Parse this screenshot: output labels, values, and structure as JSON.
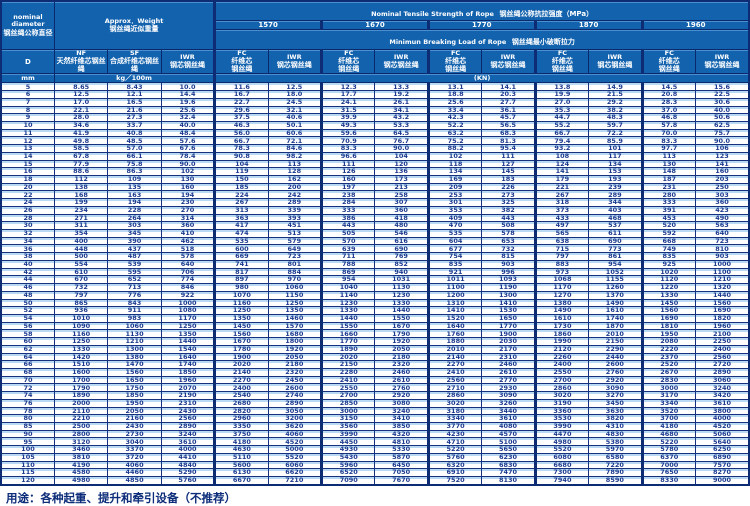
{
  "colors": {
    "header_blue": "#1262ae",
    "border_navy": "#0d2c74",
    "row_stripe_blue": "#badaf3",
    "data_text_navy": "#1b3a8f",
    "header_text": "#ffffff",
    "row_bg": "#ffffff"
  },
  "footer": {
    "usage_text": "用途：各种起重、提升和牵引设备（不推荐）"
  },
  "table": {
    "header": {
      "nominal_line1": "nominal",
      "nominal_line2": "diameter",
      "nominal_zh": "钢丝绳公称直径",
      "approx_en": "Approx．Weight",
      "approx_zh": "钢丝绳近似重量",
      "tensile_en": "Nominal  Tensile  Strength  of  Rope",
      "tensile_zh": "钢丝绳公称抗拉强度（MPa）",
      "breaking_en": "Minimun  Breaking  Load  of  Rope",
      "breaking_zh": "钢丝绳最小破断拉力",
      "strengths": [
        "1570",
        "1670",
        "1770",
        "1870",
        "1960"
      ],
      "d_label": "D",
      "nf_en": "NF",
      "nf_zh": "天然纤维芯钢丝绳",
      "sf_en": "SF",
      "sf_zh": "合成纤维芯钢丝绳",
      "iwr_en": "IWR",
      "iwr_zh": "钢芯钢丝绳",
      "fc_en": "FC",
      "fc_zh1": "纤维芯",
      "fc_zh2": "钢丝绳",
      "unit_mm": "mm",
      "unit_kg": "kg／100m",
      "unit_kn": "(KN)"
    },
    "rows": [
      [
        "5",
        "8.65",
        "8.43",
        "10.0",
        "11.6",
        "12.5",
        "12.3",
        "13.3",
        "13.1",
        "14.1",
        "13.8",
        "14.9",
        "14.5",
        "15.6"
      ],
      [
        "6",
        "12.5",
        "12.1",
        "14.4",
        "16.7",
        "18.0",
        "17.7",
        "19.2",
        "18.8",
        "20.3",
        "19.9",
        "21.5",
        "20.8",
        "22.5"
      ],
      [
        "7",
        "17.0",
        "16.5",
        "19.6",
        "22.7",
        "24.5",
        "24.1",
        "26.1",
        "25.6",
        "27.7",
        "27.0",
        "29.2",
        "28.3",
        "30.6"
      ],
      [
        "8",
        "22.1",
        "21.6",
        "25.6",
        "29.6",
        "32.1",
        "31.5",
        "34.1",
        "33.4",
        "36.1",
        "35.3",
        "38.2",
        "37.0",
        "40.0"
      ],
      [
        "9",
        "28.0",
        "27.3",
        "32.4",
        "37.5",
        "40.6",
        "39.9",
        "43.2",
        "42.3",
        "45.7",
        "44.7",
        "48.3",
        "46.8",
        "50.6"
      ],
      [
        "10",
        "34.6",
        "33.7",
        "40.0",
        "46.3",
        "50.1",
        "49.3",
        "53.3",
        "52.2",
        "56.5",
        "55.2",
        "59.7",
        "57.8",
        "62.5"
      ],
      [
        "11",
        "41.9",
        "40.8",
        "48.4",
        "56.0",
        "60.6",
        "59.6",
        "64.5",
        "63.2",
        "68.3",
        "66.7",
        "72.2",
        "70.0",
        "75.7"
      ],
      [
        "12",
        "49.8",
        "48.5",
        "57.6",
        "66.7",
        "72.1",
        "70.9",
        "76.7",
        "75.2",
        "81.3",
        "79.4",
        "85.9",
        "83.3",
        "90.0"
      ],
      [
        "13",
        "58.5",
        "57.0",
        "67.6",
        "78.3",
        "84.6",
        "83.3",
        "90.0",
        "88.2",
        "95.4",
        "93.2",
        "101",
        "97.7",
        "106"
      ],
      [
        "14",
        "67.8",
        "66.1",
        "78.4",
        "90.8",
        "98.2",
        "96.6",
        "104",
        "102",
        "111",
        "108",
        "117",
        "113",
        "123"
      ],
      [
        "15",
        "77.9",
        "75.8",
        "90.0",
        "104",
        "113",
        "111",
        "120",
        "118",
        "127",
        "124",
        "134",
        "130",
        "141"
      ],
      [
        "16",
        "88.6",
        "86.3",
        "102",
        "119",
        "128",
        "126",
        "136",
        "134",
        "145",
        "141",
        "153",
        "148",
        "160"
      ],
      [
        "18",
        "112",
        "109",
        "130",
        "150",
        "162",
        "160",
        "173",
        "169",
        "183",
        "179",
        "193",
        "187",
        "203"
      ],
      [
        "20",
        "138",
        "135",
        "160",
        "185",
        "200",
        "197",
        "213",
        "209",
        "226",
        "221",
        "239",
        "231",
        "250"
      ],
      [
        "22",
        "168",
        "163",
        "194",
        "224",
        "242",
        "238",
        "258",
        "253",
        "273",
        "267",
        "289",
        "280",
        "303"
      ],
      [
        "24",
        "199",
        "194",
        "230",
        "267",
        "289",
        "284",
        "307",
        "301",
        "325",
        "318",
        "344",
        "333",
        "360"
      ],
      [
        "26",
        "234",
        "228",
        "270",
        "313",
        "339",
        "333",
        "360",
        "353",
        "382",
        "373",
        "403",
        "391",
        "423"
      ],
      [
        "28",
        "271",
        "264",
        "314",
        "363",
        "393",
        "386",
        "418",
        "409",
        "443",
        "433",
        "468",
        "453",
        "490"
      ],
      [
        "30",
        "311",
        "303",
        "360",
        "417",
        "451",
        "443",
        "480",
        "470",
        "508",
        "497",
        "537",
        "520",
        "563"
      ],
      [
        "32",
        "354",
        "345",
        "410",
        "474",
        "513",
        "505",
        "546",
        "535",
        "578",
        "565",
        "611",
        "592",
        "640"
      ],
      [
        "34",
        "400",
        "390",
        "462",
        "535",
        "579",
        "570",
        "616",
        "604",
        "653",
        "638",
        "690",
        "668",
        "723"
      ],
      [
        "36",
        "448",
        "437",
        "518",
        "600",
        "649",
        "639",
        "690",
        "677",
        "732",
        "715",
        "773",
        "749",
        "810"
      ],
      [
        "38",
        "500",
        "487",
        "578",
        "669",
        "723",
        "711",
        "769",
        "754",
        "815",
        "797",
        "861",
        "835",
        "903"
      ],
      [
        "40",
        "554",
        "539",
        "640",
        "741",
        "801",
        "788",
        "852",
        "835",
        "903",
        "883",
        "954",
        "925",
        "1000"
      ],
      [
        "42",
        "610",
        "595",
        "706",
        "817",
        "884",
        "869",
        "940",
        "921",
        "996",
        "973",
        "1052",
        "1020",
        "1100"
      ],
      [
        "44",
        "670",
        "652",
        "774",
        "897",
        "970",
        "954",
        "1031",
        "1011",
        "1093",
        "1068",
        "1155",
        "1120",
        "1210"
      ],
      [
        "46",
        "732",
        "713",
        "846",
        "980",
        "1060",
        "1040",
        "1130",
        "1100",
        "1190",
        "1170",
        "1260",
        "1220",
        "1320"
      ],
      [
        "48",
        "797",
        "776",
        "922",
        "1070",
        "1150",
        "1140",
        "1230",
        "1200",
        "1300",
        "1270",
        "1370",
        "1330",
        "1440"
      ],
      [
        "50",
        "865",
        "843",
        "1000",
        "1160",
        "1250",
        "1230",
        "1330",
        "1310",
        "1410",
        "1380",
        "1490",
        "1450",
        "1560"
      ],
      [
        "52",
        "936",
        "911",
        "1080",
        "1250",
        "1350",
        "1330",
        "1440",
        "1410",
        "1530",
        "1490",
        "1610",
        "1560",
        "1690"
      ],
      [
        "54",
        "1010",
        "983",
        "1170",
        "1350",
        "1460",
        "1440",
        "1550",
        "1520",
        "1650",
        "1610",
        "1740",
        "1690",
        "1820"
      ],
      [
        "56",
        "1090",
        "1060",
        "1250",
        "1450",
        "1570",
        "1550",
        "1670",
        "1640",
        "1770",
        "1730",
        "1870",
        "1810",
        "1960"
      ],
      [
        "58",
        "1160",
        "1130",
        "1350",
        "1560",
        "1680",
        "1660",
        "1790",
        "1760",
        "1900",
        "1860",
        "2010",
        "1950",
        "2100"
      ],
      [
        "60",
        "1250",
        "1210",
        "1440",
        "1670",
        "1800",
        "1770",
        "1920",
        "1880",
        "2030",
        "1990",
        "2150",
        "2080",
        "2250"
      ],
      [
        "62",
        "1330",
        "1300",
        "1540",
        "1780",
        "1920",
        "1890",
        "2050",
        "2010",
        "2170",
        "2120",
        "2290",
        "2220",
        "2400"
      ],
      [
        "64",
        "1420",
        "1380",
        "1640",
        "1900",
        "2050",
        "2020",
        "2180",
        "2140",
        "2310",
        "2260",
        "2440",
        "2370",
        "2560"
      ],
      [
        "66",
        "1510",
        "1470",
        "1740",
        "2020",
        "2180",
        "2150",
        "2320",
        "2270",
        "2460",
        "2400",
        "2600",
        "2520",
        "2720"
      ],
      [
        "68",
        "1600",
        "1560",
        "1850",
        "2140",
        "2320",
        "2280",
        "2460",
        "2410",
        "2610",
        "2550",
        "2760",
        "2670",
        "2890"
      ],
      [
        "70",
        "1700",
        "1650",
        "1960",
        "2270",
        "2450",
        "2410",
        "2610",
        "2560",
        "2770",
        "2700",
        "2920",
        "2830",
        "3060"
      ],
      [
        "72",
        "1790",
        "1750",
        "2070",
        "2400",
        "2600",
        "2550",
        "2760",
        "2710",
        "2930",
        "2860",
        "3090",
        "3000",
        "3240"
      ],
      [
        "74",
        "1890",
        "1850",
        "2190",
        "2540",
        "2740",
        "2700",
        "2920",
        "2860",
        "3090",
        "3020",
        "3270",
        "3170",
        "3420"
      ],
      [
        "76",
        "2000",
        "1950",
        "2310",
        "2680",
        "2890",
        "2850",
        "3080",
        "3020",
        "3260",
        "3190",
        "3450",
        "3340",
        "3610"
      ],
      [
        "78",
        "2110",
        "2050",
        "2430",
        "2820",
        "3050",
        "3000",
        "3240",
        "3180",
        "3440",
        "3360",
        "3630",
        "3520",
        "3800"
      ],
      [
        "80",
        "2210",
        "2160",
        "2560",
        "2960",
        "3200",
        "3150",
        "3410",
        "3340",
        "3610",
        "3530",
        "3820",
        "3700",
        "4000"
      ],
      [
        "85",
        "2500",
        "2430",
        "2890",
        "3350",
        "3620",
        "3560",
        "3850",
        "3770",
        "4080",
        "3990",
        "4310",
        "4180",
        "4520"
      ],
      [
        "90",
        "2800",
        "2730",
        "3240",
        "3750",
        "4060",
        "3990",
        "4320",
        "4230",
        "4570",
        "4470",
        "4830",
        "4680",
        "5060"
      ],
      [
        "95",
        "3120",
        "3040",
        "3610",
        "4180",
        "4520",
        "4450",
        "4810",
        "4710",
        "5100",
        "4980",
        "5380",
        "5220",
        "5640"
      ],
      [
        "100",
        "3460",
        "3370",
        "4000",
        "4630",
        "5000",
        "4930",
        "5330",
        "5220",
        "5650",
        "5520",
        "5970",
        "5780",
        "6250"
      ],
      [
        "105",
        "3810",
        "3720",
        "4410",
        "5110",
        "5520",
        "5430",
        "5870",
        "5760",
        "6230",
        "6080",
        "6580",
        "6370",
        "6890"
      ],
      [
        "110",
        "4190",
        "4060",
        "4840",
        "5600",
        "6060",
        "5960",
        "6450",
        "6320",
        "6830",
        "6680",
        "7220",
        "7000",
        "7570"
      ],
      [
        "115",
        "4580",
        "4460",
        "5290",
        "6130",
        "6620",
        "6520",
        "7050",
        "6910",
        "7470",
        "7300",
        "7890",
        "7650",
        "8270"
      ],
      [
        "120",
        "4980",
        "4850",
        "5760",
        "6670",
        "7210",
        "7090",
        "7670",
        "7520",
        "8130",
        "7940",
        "8590",
        "8330",
        "9000"
      ]
    ]
  }
}
